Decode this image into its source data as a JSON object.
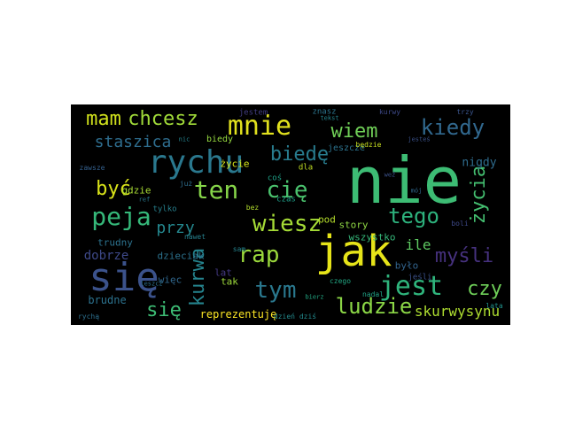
{
  "wordcloud": {
    "background": "#000000",
    "words": [
      {
        "text": "nie",
        "color": "#3dbc74",
        "rotate": false
      },
      {
        "text": "jak",
        "color": "#e6e419",
        "rotate": false
      },
      {
        "text": "się",
        "color": "#3b528b",
        "rotate": false
      },
      {
        "text": "mnie",
        "color": "#e1e11e",
        "rotate": false
      },
      {
        "text": "rychu",
        "color": "#2a788e",
        "rotate": false
      },
      {
        "text": "peja",
        "color": "#35b779",
        "rotate": false
      },
      {
        "text": "wiesz",
        "color": "#a5db36",
        "rotate": false
      },
      {
        "text": "jest",
        "color": "#2fb47c",
        "rotate": false
      },
      {
        "text": "tym",
        "color": "#2a788e",
        "rotate": false
      },
      {
        "text": "rap",
        "color": "#9bd93c",
        "rotate": false
      },
      {
        "text": "ten",
        "color": "#86d549",
        "rotate": false
      },
      {
        "text": "cię",
        "color": "#4ac16d",
        "rotate": false
      },
      {
        "text": "kiedy",
        "color": "#31688e",
        "rotate": false
      },
      {
        "text": "wiem",
        "color": "#70cf57",
        "rotate": false
      },
      {
        "text": "tego",
        "color": "#2db27d",
        "rotate": false
      },
      {
        "text": "mam",
        "color": "#d0e11c",
        "rotate": false
      },
      {
        "text": "chcesz",
        "color": "#a0da39",
        "rotate": false
      },
      {
        "text": "biedę",
        "color": "#287c8e",
        "rotate": false
      },
      {
        "text": "ludzie",
        "color": "#8bd646",
        "rotate": false
      },
      {
        "text": "staszica",
        "color": "#2e6d8e",
        "rotate": false
      },
      {
        "text": "być",
        "color": "#d8e219",
        "rotate": false
      },
      {
        "text": "przy",
        "color": "#24878e",
        "rotate": false
      },
      {
        "text": "kurwa",
        "color": "#25848e",
        "rotate": true
      },
      {
        "text": "myśli",
        "color": "#46317e",
        "rotate": false
      },
      {
        "text": "czy",
        "color": "#6ece58",
        "rotate": false
      },
      {
        "text": "życia",
        "color": "#44bf70",
        "rotate": true
      },
      {
        "text": "się",
        "color": "#3dbc74",
        "rotate": false
      },
      {
        "text": "skurwysynu",
        "color": "#addc30",
        "rotate": false
      },
      {
        "text": "reprezentuję",
        "color": "#fde725",
        "rotate": false
      },
      {
        "text": "ile",
        "color": "#5ec962",
        "rotate": false
      },
      {
        "text": "dobrze",
        "color": "#3e4989",
        "rotate": false
      },
      {
        "text": "nigdy",
        "color": "#2f6c8e",
        "rotate": false
      },
      {
        "text": "więc",
        "color": "#31688e",
        "rotate": false
      },
      {
        "text": "trudny",
        "color": "#2c728e",
        "rotate": false
      },
      {
        "text": "brudne",
        "color": "#2c728e",
        "rotate": false
      },
      {
        "text": "story",
        "color": "#8fd744",
        "rotate": false
      },
      {
        "text": "było",
        "color": "#32648e",
        "rotate": false
      },
      {
        "text": "gdzie",
        "color": "#a8db34",
        "rotate": false
      },
      {
        "text": "życie",
        "color": "#d5e21a",
        "rotate": false
      },
      {
        "text": "dzieciak",
        "color": "#2c728e",
        "rotate": false
      },
      {
        "text": "tak",
        "color": "#9dd93b",
        "rotate": false
      },
      {
        "text": "lat",
        "color": "#443983",
        "rotate": false
      },
      {
        "text": "pod",
        "color": "#b5de2b",
        "rotate": false
      },
      {
        "text": "wszystko",
        "color": "#35b779",
        "rotate": false
      },
      {
        "text": "znasz",
        "color": "#2b758e",
        "rotate": false
      },
      {
        "text": "jestem",
        "color": "#433e85",
        "rotate": false
      },
      {
        "text": "jeszcze",
        "color": "#2c738e",
        "rotate": false
      },
      {
        "text": "biedy",
        "color": "#95d840",
        "rotate": false
      },
      {
        "text": "dla",
        "color": "#c2df23",
        "rotate": false
      },
      {
        "text": "czas",
        "color": "#1f9e89",
        "rotate": false
      },
      {
        "text": "tylko",
        "color": "#27808e",
        "rotate": false
      },
      {
        "text": "kurwy",
        "color": "#3e4989",
        "rotate": false
      },
      {
        "text": "trzy",
        "color": "#3a548c",
        "rotate": false
      },
      {
        "text": "boli",
        "color": "#3e4989",
        "rotate": false
      },
      {
        "text": "lata",
        "color": "#20928c",
        "rotate": false
      },
      {
        "text": "nadal",
        "color": "#20a486",
        "rotate": false
      },
      {
        "text": "jeśli",
        "color": "#3b528b",
        "rotate": false
      },
      {
        "text": "zawsze",
        "color": "#34608d",
        "rotate": false
      },
      {
        "text": "już",
        "color": "#2e6e8e",
        "rotate": false
      },
      {
        "text": "coś",
        "color": "#1fa187",
        "rotate": false
      },
      {
        "text": "bez",
        "color": "#b2dd2d",
        "rotate": false
      },
      {
        "text": "nawet",
        "color": "#26818e",
        "rotate": false
      },
      {
        "text": "sam",
        "color": "#25848e",
        "rotate": false
      },
      {
        "text": "czego",
        "color": "#22a884",
        "rotate": false
      },
      {
        "text": "będzie",
        "color": "#c8e020",
        "rotate": false
      },
      {
        "text": "dzień dziś",
        "color": "#238a8d",
        "rotate": false
      },
      {
        "text": "nic",
        "color": "#25848e",
        "rotate": false
      },
      {
        "text": "ref",
        "color": "#2a788e",
        "rotate": false
      },
      {
        "text": "rychą",
        "color": "#2d708e",
        "rotate": false
      },
      {
        "text": "bierz",
        "color": "#22a884",
        "rotate": false
      },
      {
        "text": "leszcz",
        "color": "#2c728e",
        "rotate": false
      },
      {
        "text": "tekst",
        "color": "#25848e",
        "rotate": false
      },
      {
        "text": "weź",
        "color": "#3b528b",
        "rotate": false
      },
      {
        "text": "mój",
        "color": "#31688e",
        "rotate": false
      },
      {
        "text": "jesteś",
        "color": "#3b528b",
        "rotate": false
      }
    ]
  }
}
